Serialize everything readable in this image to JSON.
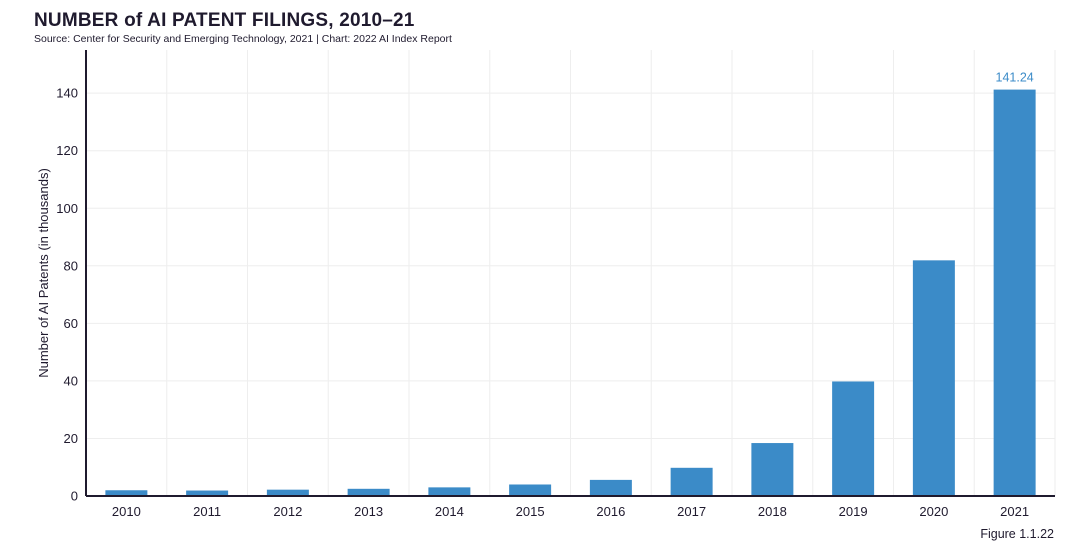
{
  "header": {
    "title": "NUMBER of AI PATENT FILINGS, 2010–21",
    "subtitle": "Source: Center for Security and Emerging Technology, 2021 | Chart: 2022 AI Index Report"
  },
  "footer": {
    "figure_label": "Figure 1.1.22"
  },
  "chart_data": {
    "type": "bar",
    "title": "NUMBER of AI PATENT FILINGS, 2010–21",
    "xlabel": "",
    "ylabel": "Number of AI Patents (in thousands)",
    "categories": [
      "2010",
      "2011",
      "2012",
      "2013",
      "2014",
      "2015",
      "2016",
      "2017",
      "2018",
      "2019",
      "2020",
      "2021"
    ],
    "values": [
      2.0,
      1.9,
      2.2,
      2.5,
      3.0,
      4.0,
      5.6,
      9.8,
      18.4,
      39.8,
      81.9,
      141.24
    ],
    "data_labels": [
      {
        "category": "2021",
        "text": "141.24"
      }
    ],
    "yticks": [
      0,
      20,
      40,
      60,
      80,
      100,
      120,
      140
    ],
    "ylim": [
      0,
      155
    ],
    "grid": true,
    "bar_color": "#3b8bc8",
    "label_color": "#3b8bc8",
    "grid_color": "#eeeeee",
    "axis_color": "#1f1a2e"
  }
}
